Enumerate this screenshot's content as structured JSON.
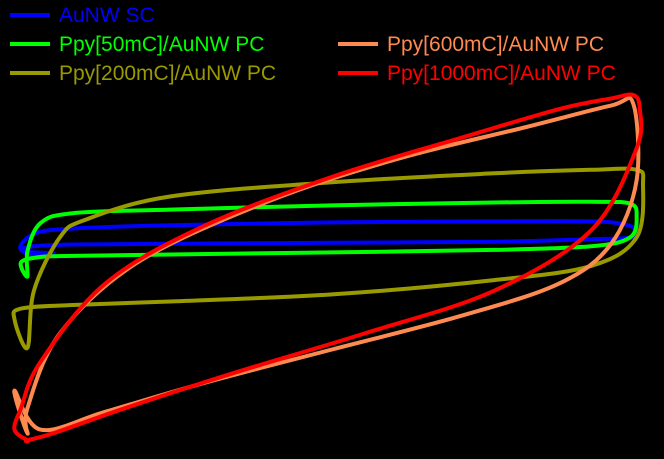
{
  "chart_data": {
    "type": "line",
    "title": "",
    "xlabel": "",
    "ylabel": "",
    "xlim": [
      0,
      1
    ],
    "ylim": [
      0,
      1
    ],
    "grid": false,
    "axes_visible": false,
    "legend_placement": "top",
    "background": "#000000",
    "series": [
      {
        "name": "AuNW SC",
        "color": "#0000ff",
        "x": [
          0.07,
          0.04,
          0.02,
          0.04,
          0.1,
          0.25,
          0.5,
          0.75,
          0.9,
          0.96,
          0.97,
          0.95,
          0.9,
          0.75,
          0.5,
          0.25,
          0.1,
          0.04,
          0.02
        ],
        "y": [
          0.555,
          0.55,
          0.565,
          0.575,
          0.58,
          0.582,
          0.585,
          0.588,
          0.595,
          0.6,
          0.62,
          0.637,
          0.645,
          0.645,
          0.642,
          0.634,
          0.625,
          0.61,
          0.565
        ]
      },
      {
        "name": "Ppy[50mC]/AuNW PC",
        "color": "#00ff00",
        "x": [
          0.03,
          0.02,
          0.05,
          0.1,
          0.25,
          0.5,
          0.75,
          0.9,
          0.96,
          0.97,
          0.96,
          0.9,
          0.75,
          0.5,
          0.25,
          0.1,
          0.05,
          0.03
        ],
        "y": [
          0.49,
          0.53,
          0.545,
          0.548,
          0.552,
          0.558,
          0.565,
          0.575,
          0.6,
          0.66,
          0.695,
          0.7,
          0.698,
          0.69,
          0.678,
          0.668,
          0.64,
          0.56
        ]
      },
      {
        "name": "Ppy[200mC]/AuNW PC",
        "color": "#999900",
        "x": [
          0.03,
          0.01,
          0.02,
          0.1,
          0.25,
          0.5,
          0.75,
          0.9,
          0.97,
          0.98,
          0.97,
          0.9,
          0.75,
          0.5,
          0.25,
          0.12,
          0.08,
          0.04
        ],
        "y": [
          0.29,
          0.37,
          0.4,
          0.41,
          0.42,
          0.44,
          0.48,
          0.52,
          0.6,
          0.75,
          0.79,
          0.79,
          0.78,
          0.755,
          0.715,
          0.65,
          0.6,
          0.45
        ]
      },
      {
        "name": "Ppy[600mC]/AuNW PC",
        "color": "#ff8a50",
        "x": [
          0.03,
          0.01,
          0.05,
          0.15,
          0.3,
          0.5,
          0.7,
          0.85,
          0.93,
          0.97,
          0.965,
          0.93,
          0.8,
          0.6,
          0.4,
          0.2,
          0.08,
          0.03
        ],
        "y": [
          0.05,
          0.17,
          0.06,
          0.11,
          0.19,
          0.285,
          0.38,
          0.47,
          0.58,
          0.76,
          0.975,
          0.97,
          0.91,
          0.82,
          0.7,
          0.53,
          0.33,
          0.12
        ]
      },
      {
        "name": "Ppy[1000mC]/AuNW PC",
        "color": "#ff0000",
        "x": [
          0.03,
          0.01,
          0.02,
          0.05,
          0.15,
          0.3,
          0.5,
          0.7,
          0.85,
          0.93,
          0.965,
          0.975,
          0.97,
          0.9,
          0.75,
          0.55,
          0.35,
          0.18,
          0.07,
          0.03
        ],
        "y": [
          0.03,
          0.06,
          0.12,
          0.25,
          0.47,
          0.63,
          0.77,
          0.88,
          0.96,
          0.99,
          1.0,
          0.96,
          0.85,
          0.62,
          0.45,
          0.33,
          0.22,
          0.12,
          0.05,
          0.03
        ]
      }
    ]
  }
}
